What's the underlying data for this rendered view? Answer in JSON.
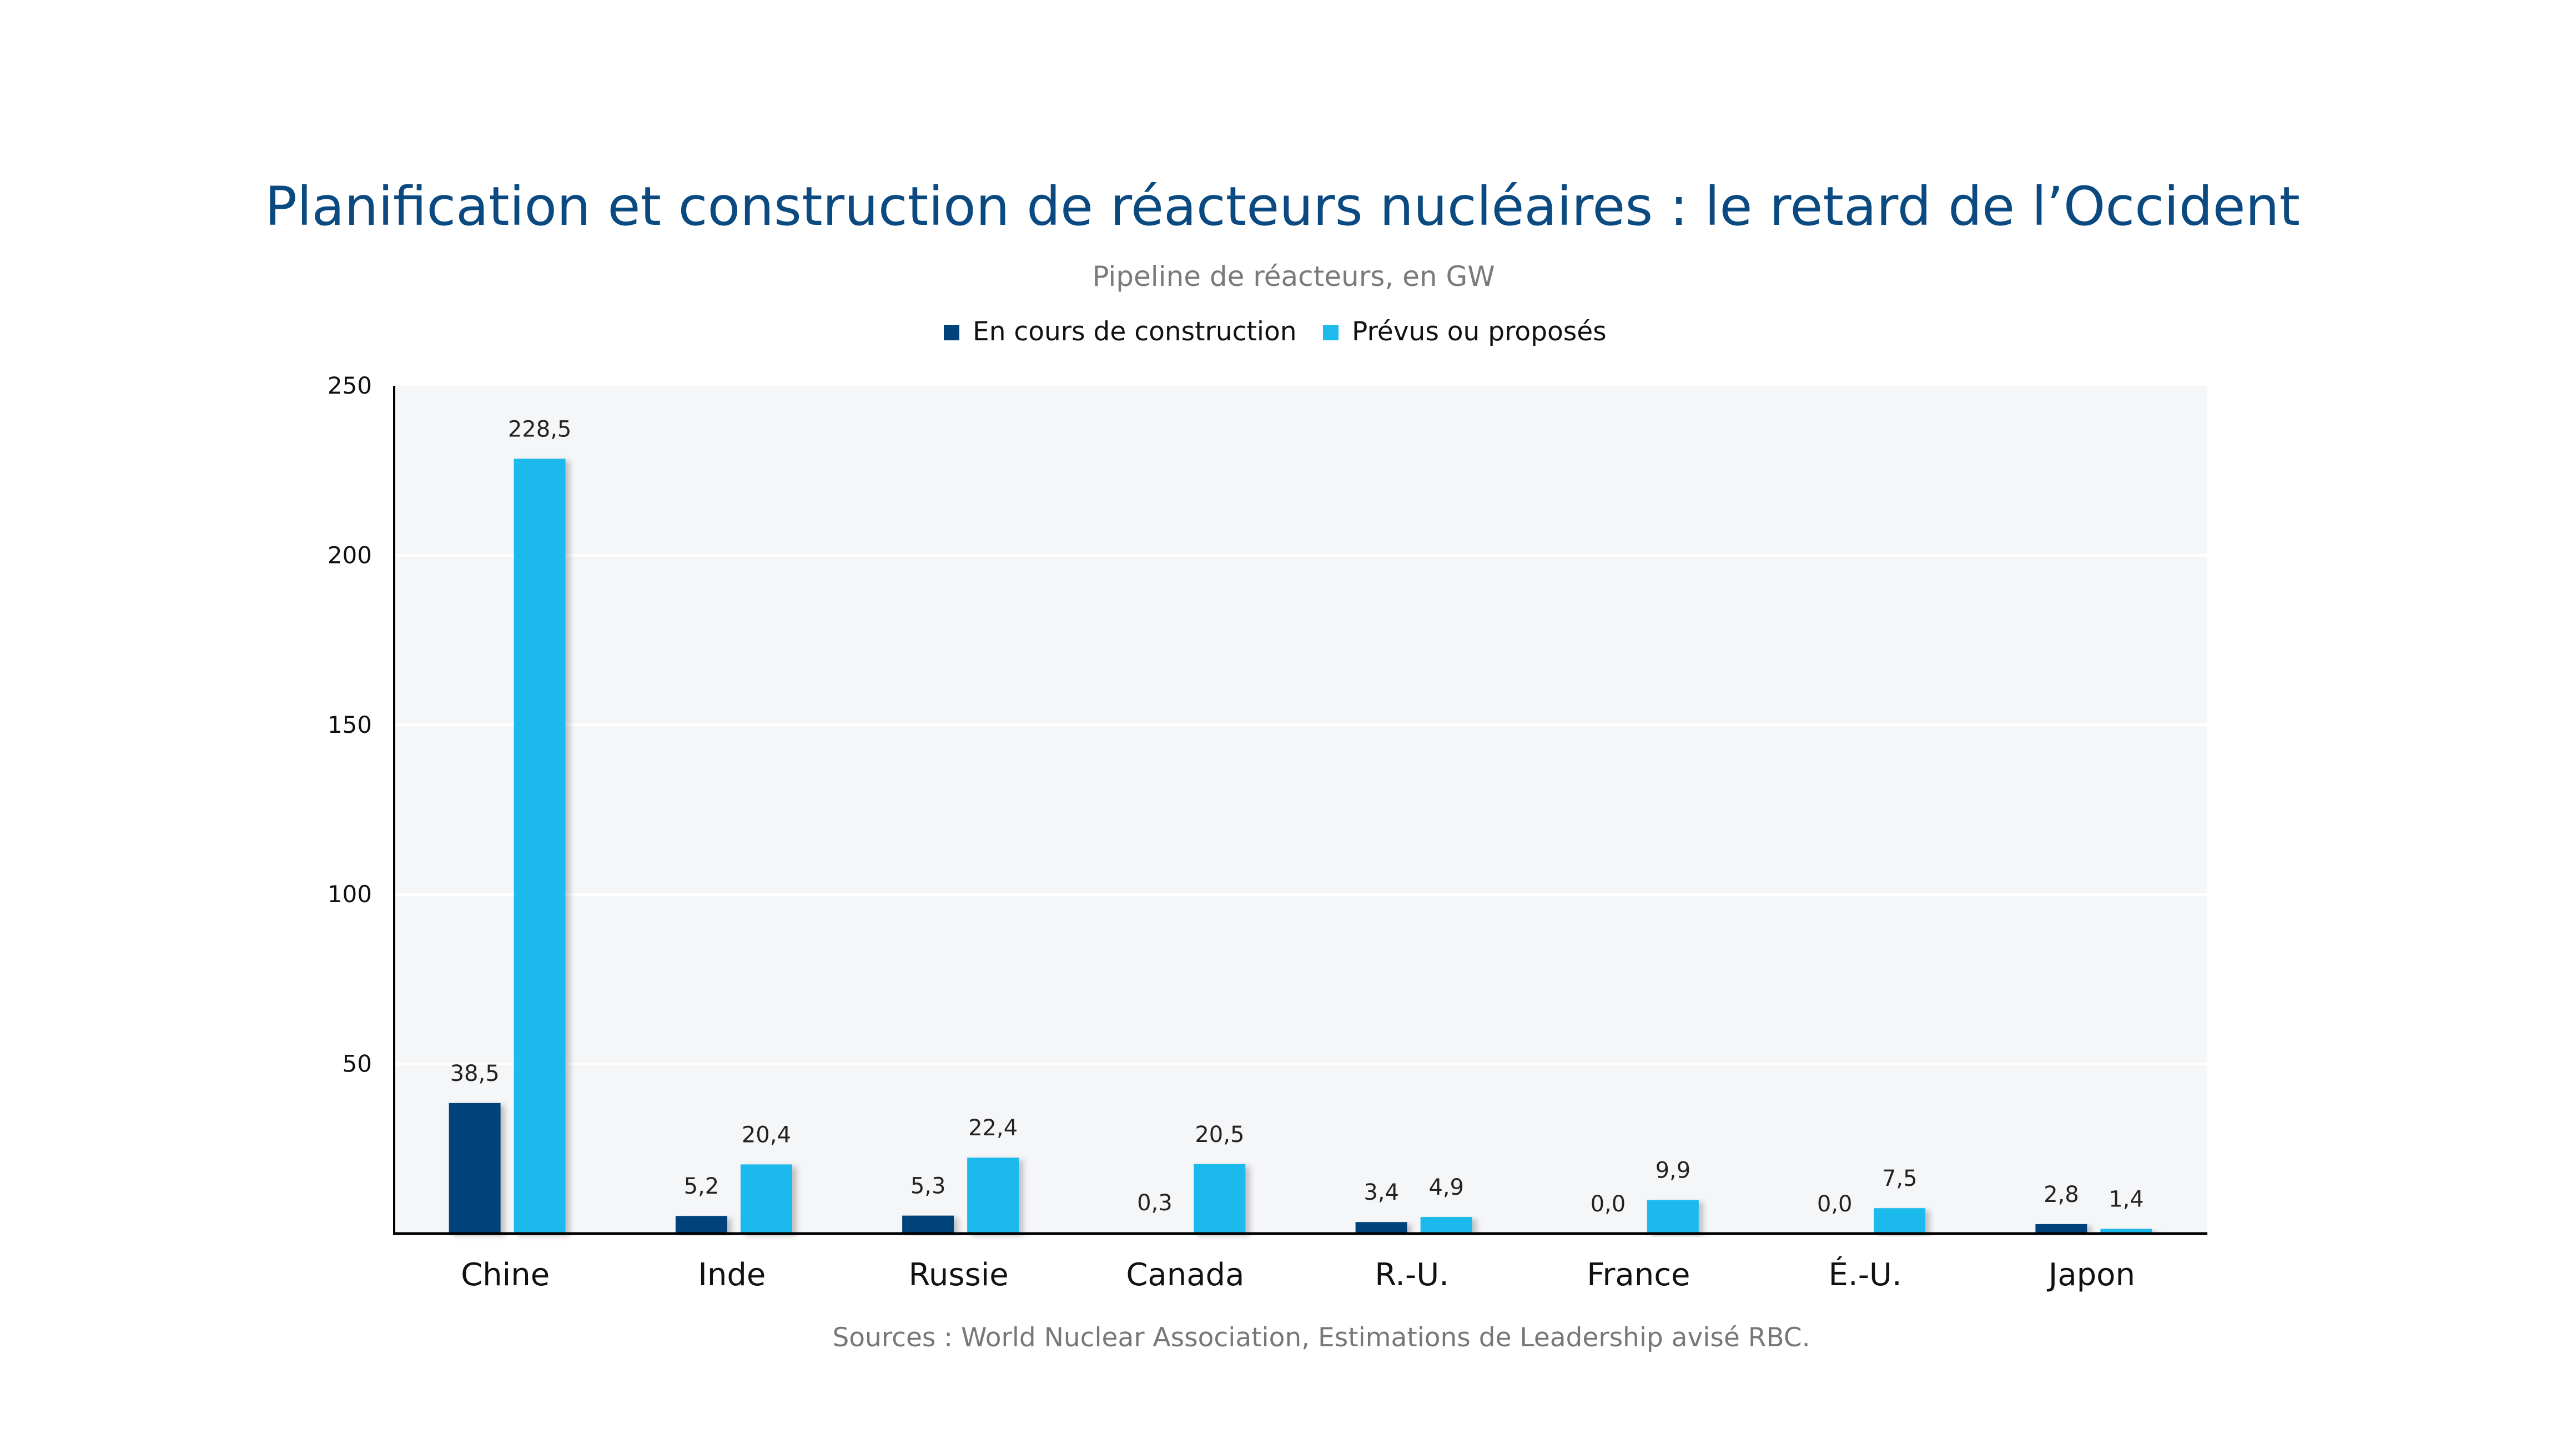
{
  "chart_data": {
    "type": "bar",
    "title": "Planification et construction de réacteurs nucléaires : le retard de l’Occident",
    "subtitle": "Pipeline de réacteurs, en GW",
    "xlabel": "",
    "ylabel": "",
    "ylim": [
      0,
      250
    ],
    "yticks": [
      "50",
      "100",
      "150",
      "200",
      "250"
    ],
    "ytick_values": [
      50,
      100,
      150,
      200,
      250
    ],
    "grid": true,
    "legend_position": "top-center",
    "categories": [
      "Chine",
      "Inde",
      "Russie",
      "Canada",
      "R.-U.",
      "France",
      "É.-U.",
      "Japon"
    ],
    "series": [
      {
        "name": "En cours de construction",
        "color": "#00427a",
        "values": [
          38.5,
          5.2,
          5.3,
          0.3,
          3.4,
          0.0,
          0.0,
          2.8
        ],
        "labels": [
          "38,5",
          "5,2",
          "5,3",
          "0,3",
          "3,4",
          "0,0",
          "0,0",
          "2,8"
        ]
      },
      {
        "name": "Prévus ou proposés",
        "color": "#1fbaec",
        "values": [
          228.5,
          20.4,
          22.4,
          20.5,
          4.9,
          9.9,
          7.5,
          1.4
        ],
        "labels": [
          "228,5",
          "20,4",
          "22,4",
          "20,5",
          "4,9",
          "9,9",
          "7,5",
          "1,4"
        ]
      }
    ],
    "source": "Sources : World Nuclear Association, Estimations de Leadership avisé RBC.",
    "colors": {
      "title": "#0b4a80",
      "plot_background": "#f5f6f8"
    }
  }
}
